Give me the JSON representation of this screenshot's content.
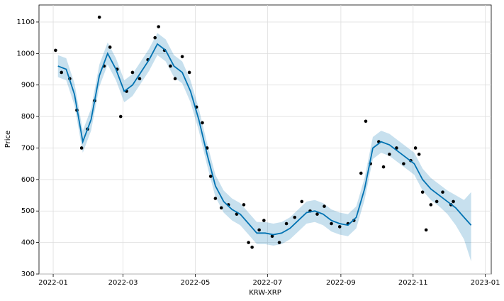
{
  "chart_data": {
    "type": "line",
    "xlabel": "KRW-XRP",
    "ylabel": "Price",
    "xlim": [
      "2021-12-20",
      "2023-01-06"
    ],
    "ylim": [
      300,
      1154
    ],
    "xticks": [
      {
        "value": "2022-01-01",
        "label": "2022-01"
      },
      {
        "value": "2022-03-01",
        "label": "2022-03"
      },
      {
        "value": "2022-05-01",
        "label": "2022-05"
      },
      {
        "value": "2022-07-01",
        "label": "2022-07"
      },
      {
        "value": "2022-09-01",
        "label": "2022-09"
      },
      {
        "value": "2022-11-01",
        "label": "2022-11"
      },
      {
        "value": "2023-01-01",
        "label": "2023-01"
      }
    ],
    "yticks": [
      300,
      400,
      500,
      600,
      700,
      800,
      900,
      1000,
      1100
    ],
    "grid": true,
    "forecast": {
      "color": "#0072B2",
      "x": [
        "2022-01-05",
        "2022-01-12",
        "2022-01-19",
        "2022-01-26",
        "2022-02-02",
        "2022-02-09",
        "2022-02-16",
        "2022-02-23",
        "2022-03-02",
        "2022-03-09",
        "2022-03-16",
        "2022-03-23",
        "2022-03-30",
        "2022-04-06",
        "2022-04-13",
        "2022-04-20",
        "2022-04-27",
        "2022-05-04",
        "2022-05-11",
        "2022-05-18",
        "2022-05-25",
        "2022-06-01",
        "2022-06-08",
        "2022-06-15",
        "2022-06-22",
        "2022-06-29",
        "2022-07-06",
        "2022-07-13",
        "2022-07-20",
        "2022-07-27",
        "2022-08-03",
        "2022-08-10",
        "2022-08-17",
        "2022-08-24",
        "2022-08-31",
        "2022-09-07",
        "2022-09-14",
        "2022-09-21",
        "2022-09-28",
        "2022-10-05",
        "2022-10-12",
        "2022-10-19",
        "2022-10-26",
        "2022-11-02",
        "2022-11-09",
        "2022-11-16",
        "2022-11-23",
        "2022-11-30",
        "2022-12-07",
        "2022-12-14",
        "2022-12-20"
      ],
      "yhat": [
        960,
        950,
        870,
        720,
        790,
        930,
        1000,
        950,
        880,
        900,
        940,
        980,
        1030,
        1010,
        960,
        940,
        880,
        790,
        680,
        580,
        530,
        505,
        490,
        460,
        430,
        430,
        425,
        430,
        445,
        470,
        495,
        500,
        490,
        470,
        460,
        455,
        480,
        570,
        700,
        720,
        710,
        690,
        670,
        650,
        600,
        570,
        550,
        530,
        510,
        480,
        455
      ],
      "lower": [
        925,
        915,
        835,
        685,
        755,
        895,
        965,
        915,
        845,
        865,
        905,
        945,
        995,
        975,
        925,
        905,
        845,
        755,
        645,
        545,
        495,
        470,
        455,
        425,
        395,
        395,
        390,
        395,
        410,
        435,
        460,
        465,
        455,
        435,
        425,
        420,
        445,
        535,
        665,
        685,
        675,
        655,
        635,
        615,
        565,
        535,
        515,
        490,
        455,
        410,
        340
      ],
      "upper": [
        995,
        985,
        905,
        755,
        825,
        965,
        1035,
        985,
        915,
        935,
        975,
        1015,
        1065,
        1045,
        995,
        975,
        915,
        825,
        715,
        615,
        565,
        540,
        525,
        495,
        465,
        465,
        460,
        465,
        480,
        505,
        530,
        535,
        525,
        505,
        495,
        490,
        515,
        605,
        735,
        755,
        745,
        725,
        705,
        685,
        635,
        605,
        585,
        565,
        550,
        535,
        560
      ]
    },
    "observed": {
      "color": "#000000",
      "x": [
        "2022-01-03",
        "2022-01-08",
        "2022-01-15",
        "2022-01-21",
        "2022-01-25",
        "2022-01-30",
        "2022-02-05",
        "2022-02-09",
        "2022-02-13",
        "2022-02-18",
        "2022-02-24",
        "2022-02-27",
        "2022-03-04",
        "2022-03-09",
        "2022-03-15",
        "2022-03-22",
        "2022-03-28",
        "2022-03-31",
        "2022-04-05",
        "2022-04-10",
        "2022-04-14",
        "2022-04-20",
        "2022-04-26",
        "2022-05-02",
        "2022-05-07",
        "2022-05-11",
        "2022-05-14",
        "2022-05-18",
        "2022-05-23",
        "2022-05-29",
        "2022-06-05",
        "2022-06-11",
        "2022-06-15",
        "2022-06-18",
        "2022-06-24",
        "2022-06-28",
        "2022-07-05",
        "2022-07-11",
        "2022-07-17",
        "2022-07-24",
        "2022-07-30",
        "2022-08-06",
        "2022-08-12",
        "2022-08-18",
        "2022-08-24",
        "2022-08-31",
        "2022-09-07",
        "2022-09-12",
        "2022-09-18",
        "2022-09-22",
        "2022-09-26",
        "2022-10-03",
        "2022-10-07",
        "2022-10-12",
        "2022-10-18",
        "2022-10-24",
        "2022-10-30",
        "2022-11-03",
        "2022-11-06",
        "2022-11-09",
        "2022-11-12",
        "2022-11-16",
        "2022-11-21",
        "2022-11-26",
        "2022-12-03",
        "2022-12-05"
      ],
      "values": [
        1010,
        940,
        920,
        820,
        700,
        760,
        850,
        1115,
        960,
        1020,
        950,
        800,
        880,
        940,
        920,
        980,
        1050,
        1085,
        1010,
        960,
        920,
        990,
        940,
        830,
        780,
        700,
        610,
        540,
        510,
        520,
        490,
        520,
        400,
        385,
        440,
        470,
        420,
        400,
        460,
        480,
        530,
        500,
        490,
        515,
        460,
        450,
        460,
        470,
        620,
        785,
        650,
        720,
        640,
        680,
        700,
        650,
        660,
        700,
        680,
        560,
        440,
        520,
        530,
        560,
        520,
        530
      ]
    }
  }
}
